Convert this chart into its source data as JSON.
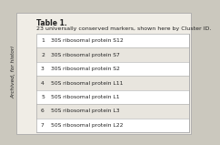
{
  "title": "Table 1.",
  "subtitle": "23 universally conserved markers, shown here by Cluster ID.",
  "rows": [
    [
      "1",
      "30S ribosomal protein S12"
    ],
    [
      "2",
      "30S ribosomal protein S7"
    ],
    [
      "3",
      "30S ribosomal protein S2"
    ],
    [
      "4",
      "50S ribosomal protein L11"
    ],
    [
      "5",
      "50S ribosomal protein L1"
    ],
    [
      "6",
      "50S ribosomal protein L3"
    ],
    [
      "7",
      "50S ribosomal protein L22"
    ]
  ],
  "side_text": "Archived, for histori",
  "outer_bg": "#cbc8be",
  "inner_bg": "#f0ede6",
  "table_bg": "#ffffff",
  "row_alt_bg": "#e8e5de",
  "border_color": "#aaaaaa",
  "text_color": "#222222",
  "title_fontsize": 5.5,
  "subtitle_fontsize": 4.5,
  "row_fontsize": 4.3,
  "side_fontsize": 4.2
}
